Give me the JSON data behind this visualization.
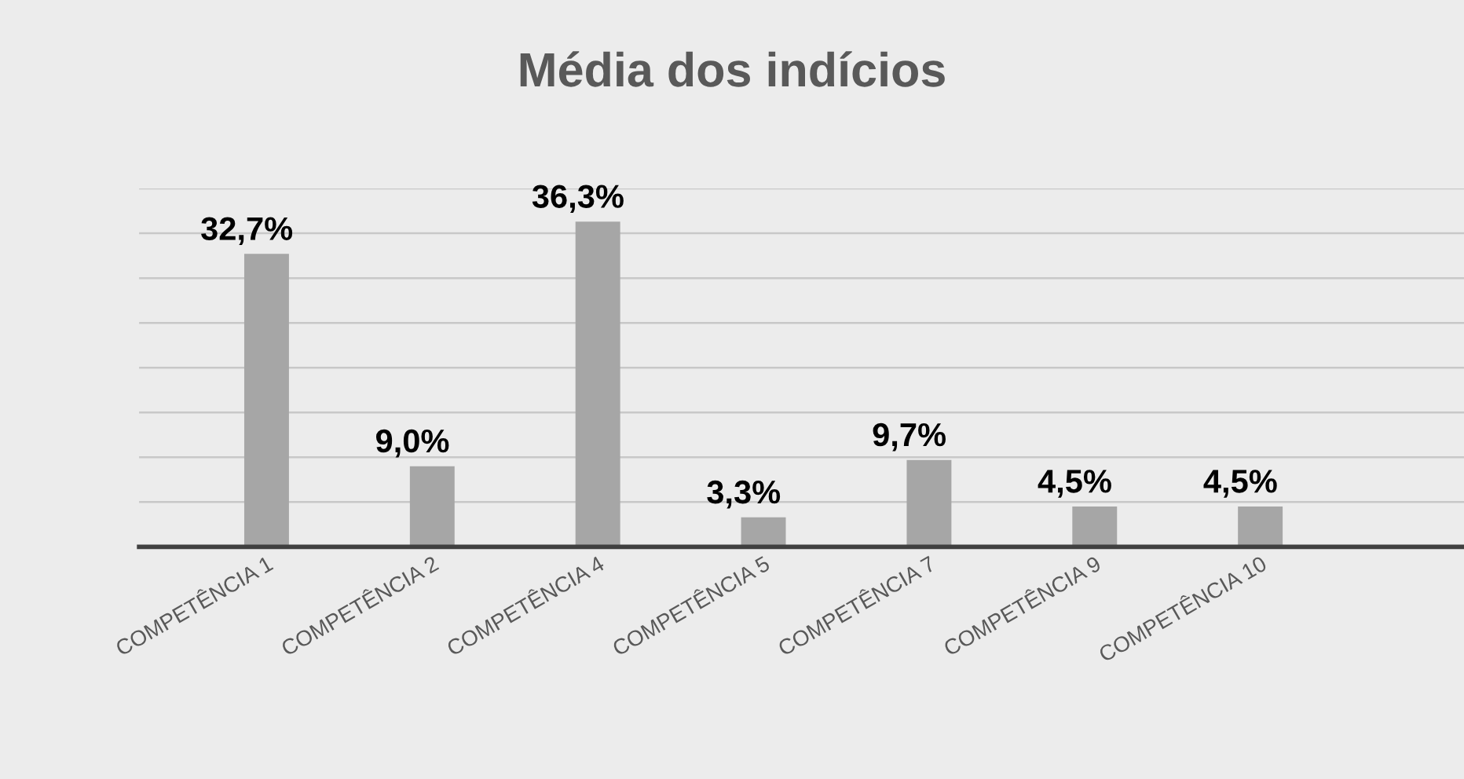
{
  "chart_data": {
    "type": "bar",
    "title": "Média dos indícios",
    "categories": [
      "COMPETÊNCIA 1",
      "COMPETÊNCIA 2",
      "COMPETÊNCIA 4",
      "COMPETÊNCIA 5",
      "COMPETÊNCIA 7",
      "COMPETÊNCIA 9",
      "COMPETÊNCIA 10"
    ],
    "values": [
      32.7,
      9.0,
      36.3,
      3.3,
      9.7,
      4.5,
      4.5
    ],
    "value_labels": [
      "32,7%",
      "9,0%",
      "36,3%",
      "3,3%",
      "9,7%",
      "4,5%",
      "4,5%"
    ],
    "color": "#a6a6a6",
    "ylim": [
      0,
      40
    ],
    "yticks": [
      {
        "value": 0,
        "label": null
      },
      {
        "value": 5,
        "label": null
      },
      {
        "value": 10,
        "label": null
      },
      {
        "value": 15,
        "label": null
      },
      {
        "value": 20,
        "label": null
      },
      {
        "value": 25,
        "label": null
      },
      {
        "value": 30,
        "label": null
      },
      {
        "value": 35,
        "label": null
      },
      {
        "value": 40,
        "label": null
      }
    ],
    "grid": "y",
    "tick_labels": "x",
    "legend": false
  }
}
